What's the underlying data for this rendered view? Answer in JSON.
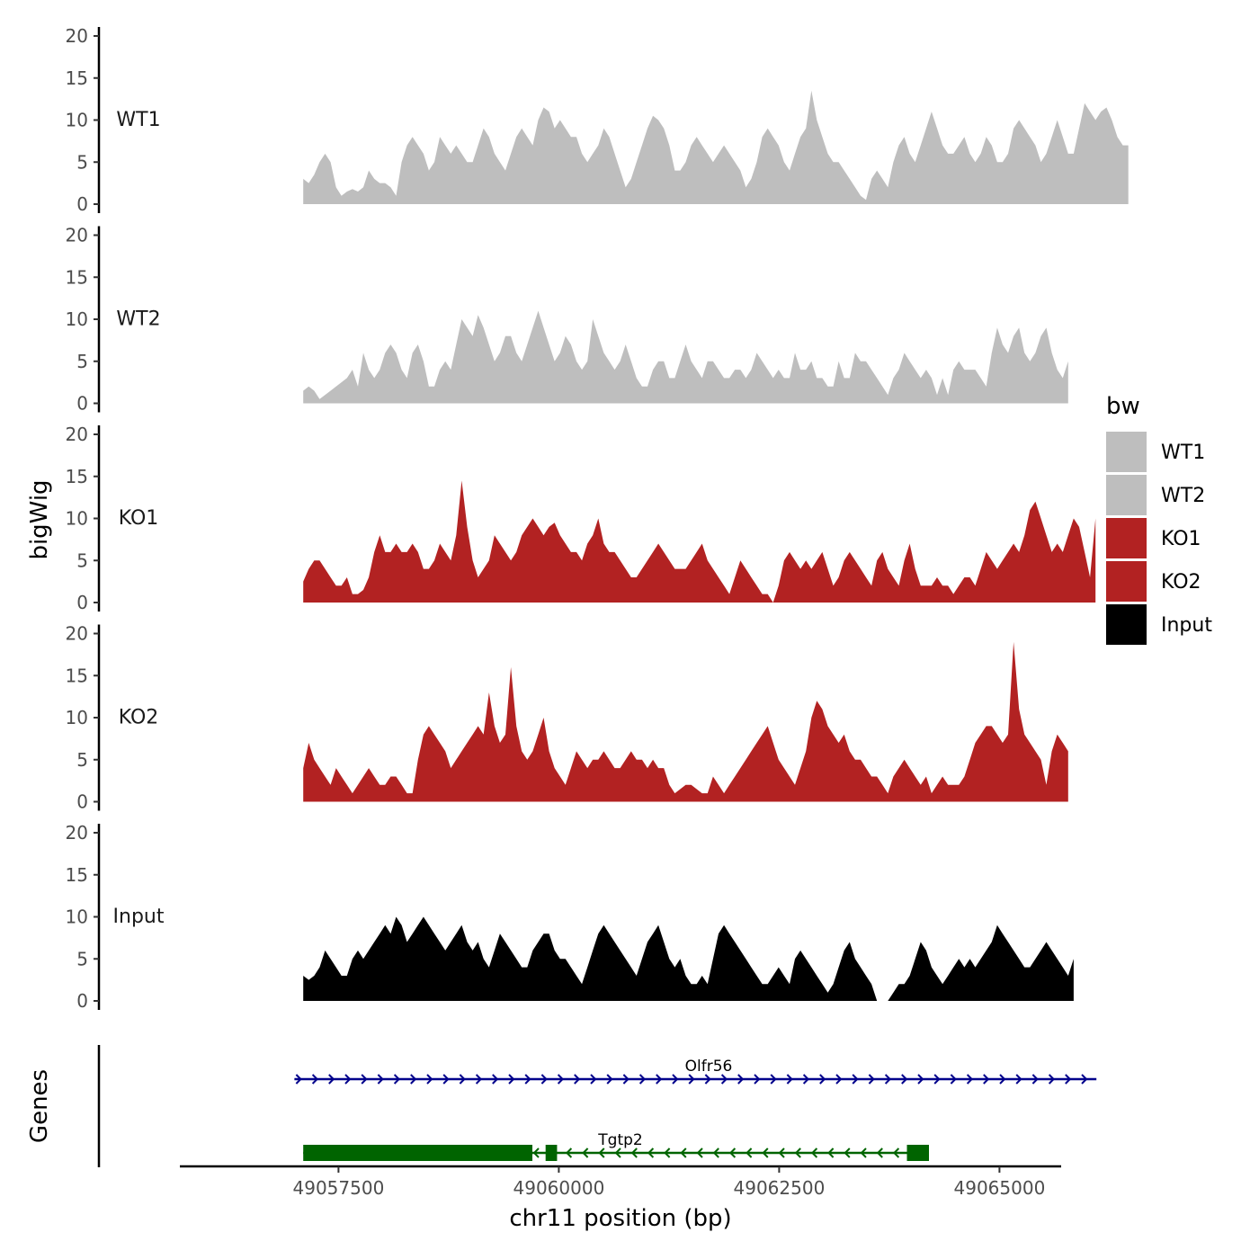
{
  "chart_data": {
    "type": "area",
    "xlabel": "chr11 position (bp)",
    "ylabel": "bigWig",
    "genes_label": "Genes",
    "xlim": [
      49055700,
      49065700
    ],
    "x_ticks": [
      49057500,
      49060000,
      49062500,
      49065000
    ],
    "x_tick_labels": [
      "49057500",
      "49060000",
      "49062500",
      "49065000"
    ],
    "ylim": [
      0,
      20
    ],
    "y_ticks": [
      0,
      5,
      10,
      15,
      20
    ],
    "y_tick_labels": [
      "0",
      "5",
      "10",
      "15",
      "20"
    ],
    "x_start": 49057100,
    "x_step": 10,
    "legend": {
      "title": "bw",
      "position": "right",
      "items": [
        {
          "label": "WT1",
          "color": "#bebebe"
        },
        {
          "label": "WT2",
          "color": "#bebebe"
        },
        {
          "label": "KO1",
          "color": "#b22222"
        },
        {
          "label": "KO2",
          "color": "#b22222"
        },
        {
          "label": "Input",
          "color": "#000000"
        }
      ]
    },
    "series": [
      {
        "name": "WT1",
        "color": "#bebebe",
        "values": [
          3,
          2.5,
          3.5,
          5,
          6,
          5,
          2,
          1,
          1.5,
          1.8,
          1.5,
          2,
          4,
          3,
          2.5,
          2.5,
          2,
          1,
          5,
          7,
          8,
          7,
          6,
          4,
          5,
          8,
          7,
          6,
          7,
          6,
          5,
          5,
          7,
          9,
          8,
          6,
          5,
          4,
          6,
          8,
          9,
          8,
          7,
          10,
          11.5,
          11,
          9,
          10,
          9,
          8,
          8,
          6,
          5,
          6,
          7,
          9,
          8,
          6,
          4,
          2,
          3,
          5,
          7,
          9,
          10.5,
          10,
          9,
          7,
          4,
          4,
          5,
          7,
          8,
          7,
          6,
          5,
          6,
          7,
          6,
          5,
          4,
          2,
          3,
          5,
          8,
          9,
          8,
          7,
          5,
          4,
          6,
          8,
          9,
          13.5,
          10,
          8,
          6,
          5,
          5,
          4,
          3,
          2,
          1,
          0.5,
          3,
          4,
          3,
          2,
          5,
          7,
          8,
          6,
          5,
          7,
          9,
          11,
          9,
          7,
          6,
          6,
          7,
          8,
          6,
          5,
          6,
          8,
          7,
          5,
          5,
          6,
          9,
          10,
          9,
          8,
          7,
          5,
          6,
          8,
          10,
          8,
          6,
          6,
          9,
          12,
          11,
          10,
          11,
          11.5,
          10,
          8,
          7,
          7
        ],
        "label_pos": [
          49059600,
          49060900,
          49063200
        ]
      },
      {
        "name": "WT2",
        "color": "#bebebe",
        "values": [
          1.5,
          2,
          1.5,
          0.5,
          1,
          1.5,
          2,
          2.5,
          3,
          4,
          2,
          6,
          4,
          3,
          4,
          6,
          7,
          6,
          4,
          3,
          6,
          7,
          5,
          2,
          2,
          4,
          5,
          4,
          7,
          10,
          9,
          8,
          10.5,
          9,
          7,
          5,
          6,
          8,
          8,
          6,
          5,
          7,
          9,
          11,
          9,
          7,
          5,
          6,
          8,
          7,
          5,
          4,
          5,
          10,
          8,
          6,
          5,
          4,
          5,
          7,
          5,
          3,
          2,
          2,
          4,
          5,
          5,
          3,
          3,
          5,
          7,
          5,
          4,
          3,
          5,
          5,
          4,
          3,
          3,
          4,
          4,
          3,
          4,
          6,
          5,
          4,
          3,
          4,
          3,
          3,
          6,
          4,
          4,
          5,
          3,
          3,
          2,
          2,
          5,
          3,
          3,
          6,
          5,
          5,
          4,
          3,
          2,
          1,
          3,
          4,
          6,
          5,
          4,
          3,
          4,
          3,
          1,
          3,
          1,
          4,
          5,
          4,
          4,
          4,
          3,
          2,
          6,
          9,
          7,
          6,
          8,
          9,
          6,
          5,
          6,
          8,
          9,
          6,
          4,
          3,
          5
        ],
        "label_pos": [
          49059400,
          49061800,
          49064600
        ]
      },
      {
        "name": "KO1",
        "color": "#b22222",
        "values": [
          2.5,
          4,
          5,
          5,
          4,
          3,
          2,
          2,
          3,
          1,
          1,
          1.5,
          3,
          6,
          8,
          6,
          6,
          7,
          6,
          6,
          7,
          6,
          4,
          4,
          5,
          7,
          6,
          5,
          8,
          14.5,
          9,
          5,
          3,
          4,
          5,
          8,
          7,
          6,
          5,
          6,
          8,
          9,
          10,
          9,
          8,
          9,
          9.5,
          8,
          7,
          6,
          6,
          5,
          7,
          8,
          10,
          7,
          6,
          6,
          5,
          4,
          3,
          3,
          4,
          5,
          6,
          7,
          6,
          5,
          4,
          4,
          4,
          5,
          6,
          7,
          5,
          4,
          3,
          2,
          1,
          3,
          5,
          4,
          3,
          2,
          1,
          1,
          0,
          2,
          5,
          6,
          5,
          4,
          5,
          4,
          5,
          6,
          4,
          2,
          3,
          5,
          6,
          5,
          4,
          3,
          2,
          5,
          6,
          4,
          3,
          2,
          5,
          7,
          4,
          2,
          2,
          2,
          3,
          2,
          2,
          1,
          2,
          3,
          3,
          2,
          4,
          6,
          5,
          4,
          5,
          6,
          7,
          6,
          8,
          11,
          12,
          10,
          8,
          6,
          7,
          6,
          8,
          10,
          9,
          6,
          3,
          10
        ],
        "label_pos": [
          49058600,
          49062000,
          49064300
        ]
      },
      {
        "name": "KO2",
        "color": "#b22222",
        "values": [
          4,
          7,
          5,
          4,
          3,
          2,
          4,
          3,
          2,
          1,
          2,
          3,
          4,
          3,
          2,
          2,
          3,
          3,
          2,
          1,
          1,
          5,
          8,
          9,
          8,
          7,
          6,
          4,
          5,
          6,
          7,
          8,
          9,
          8,
          13,
          9,
          7,
          8,
          16,
          9,
          6,
          5,
          6,
          8,
          10,
          6,
          4,
          3,
          2,
          4,
          6,
          5,
          4,
          5,
          5,
          6,
          5,
          4,
          4,
          5,
          6,
          5,
          5,
          4,
          5,
          4,
          4,
          2,
          1,
          1.5,
          2,
          2,
          1.5,
          1,
          1,
          3,
          2,
          1,
          2,
          3,
          4,
          5,
          6,
          7,
          8,
          9,
          7,
          5,
          4,
          3,
          2,
          4,
          6,
          10,
          12,
          11,
          9,
          8,
          7,
          8,
          6,
          5,
          5,
          4,
          3,
          3,
          2,
          1,
          3,
          4,
          5,
          4,
          3,
          2,
          3,
          1,
          2,
          3,
          2,
          2,
          2,
          3,
          5,
          7,
          8,
          9,
          9,
          8,
          7,
          8,
          19,
          11,
          8,
          7,
          6,
          5,
          2,
          6,
          8,
          7,
          6
        ],
        "label_pos": [
          49059000,
          49063600,
          49064500
        ]
      },
      {
        "name": "Input",
        "color": "#000000",
        "values": [
          3,
          2.5,
          3,
          4,
          6,
          5,
          4,
          3,
          3,
          5,
          6,
          5,
          6,
          7,
          8,
          9,
          8,
          10,
          9,
          7,
          8,
          9,
          10,
          9,
          8,
          7,
          6,
          7,
          8,
          9,
          7,
          6,
          7,
          5,
          4,
          6,
          8,
          7,
          6,
          5,
          4,
          4,
          6,
          7,
          8,
          8,
          6,
          5,
          5,
          4,
          3,
          2,
          4,
          6,
          8,
          9,
          8,
          7,
          6,
          5,
          4,
          3,
          5,
          7,
          8,
          9,
          7,
          5,
          4,
          5,
          3,
          2,
          2,
          3,
          2,
          5,
          8,
          9,
          8,
          7,
          6,
          5,
          4,
          3,
          2,
          2,
          3,
          4,
          3,
          2,
          5,
          6,
          5,
          4,
          3,
          2,
          1,
          2,
          4,
          6,
          7,
          5,
          4,
          3,
          2,
          0,
          0,
          0,
          1,
          2,
          2,
          3,
          5,
          7,
          6,
          4,
          3,
          2,
          3,
          4,
          5,
          4,
          5,
          4,
          5,
          6,
          7,
          9,
          8,
          7,
          6,
          5,
          4,
          4,
          5,
          6,
          7,
          6,
          5,
          4,
          3,
          5
        ],
        "label_pos": [
          49057800,
          49061300,
          49064600
        ]
      }
    ],
    "genes": [
      {
        "name": "Olfr56",
        "strand": "+",
        "color": "#00008b",
        "start": 49057000,
        "end": 49066100,
        "exons": []
      },
      {
        "name": "Tgtp2",
        "strand": "-",
        "color": "#006400",
        "start": 49057100,
        "end": 49064200,
        "exons": [
          [
            49057100,
            49059700
          ],
          [
            49059850,
            49059980
          ],
          [
            49063950,
            49064200
          ]
        ]
      }
    ]
  }
}
